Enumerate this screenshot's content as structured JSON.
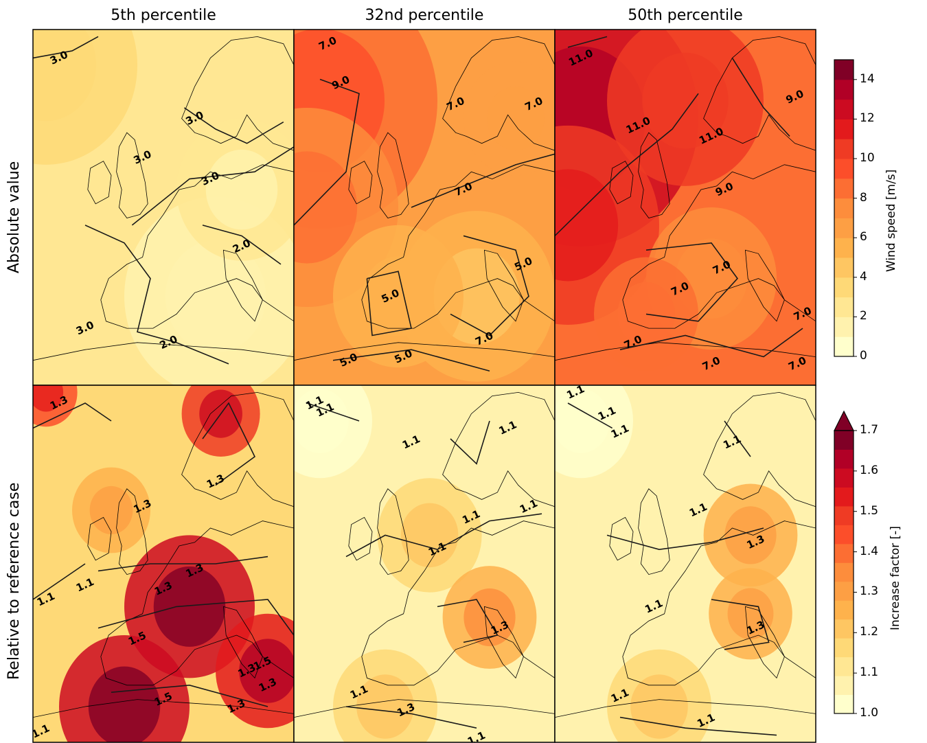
{
  "columns": [
    "5th percentile",
    "32nd percentile",
    "50th percentile"
  ],
  "rows": [
    "Absolute value",
    "Relative to reference case"
  ],
  "chart_data": [
    {
      "type": "heatmap",
      "row": "Absolute value",
      "colorbar": {
        "label": "Wind speed [m/s]",
        "range": [
          0,
          15
        ],
        "ticks": [
          "0",
          "2",
          "4",
          "6",
          "8",
          "10",
          "12",
          "14"
        ],
        "levels": 15,
        "cmap": [
          "#ffffcc",
          "#fff2ae",
          "#ffe793",
          "#fed977",
          "#fec662",
          "#feb24c",
          "#fd9f44",
          "#fd8d3c",
          "#fc6e33",
          "#fc4e2a",
          "#ef3b24",
          "#e31a1c",
          "#cc0b21",
          "#b10026",
          "#800026"
        ]
      },
      "panels": [
        {
          "column": "5th percentile",
          "base_value": 2.8,
          "contour_labels": [
            "3.0",
            "3.0",
            "3.0",
            "3.0",
            "2.0",
            "3.0",
            "2.0"
          ]
        },
        {
          "column": "32nd percentile",
          "base_value": 6.2,
          "contour_labels": [
            "7.0",
            "9.0",
            "7.0",
            "7.0",
            "7.0",
            "5.0",
            "5.0",
            "7.0",
            "5.0",
            "5.0"
          ]
        },
        {
          "column": "50th percentile",
          "base_value": 8.7,
          "contour_labels": [
            "11.0",
            "11.0",
            "11.0",
            "9.0",
            "9.0",
            "7.0",
            "7.0",
            "7.0",
            "7.0",
            "7.0",
            "7.0"
          ]
        }
      ]
    },
    {
      "type": "heatmap",
      "row": "Relative to reference case",
      "colorbar": {
        "label": "Increase factor [-]",
        "range": [
          1.0,
          1.7
        ],
        "ticks": [
          "1.0",
          "1.1",
          "1.2",
          "1.3",
          "1.4",
          "1.5",
          "1.6",
          "1.7"
        ],
        "extend": "max",
        "cmap": [
          "#ffffcc",
          "#fff2ae",
          "#ffe793",
          "#fed977",
          "#fec662",
          "#feb24c",
          "#fd9f44",
          "#fd8d3c",
          "#fc6e33",
          "#fc4e2a",
          "#ef3b24",
          "#e31a1c",
          "#cc0b21",
          "#b10026",
          "#800026"
        ]
      },
      "panels": [
        {
          "column": "5th percentile",
          "base_value": 1.18,
          "contour_labels": [
            "1.3",
            "1.3",
            "1.3",
            "1.3",
            "1.1",
            "1.1",
            "1.3",
            "1.5",
            "1.5",
            "1.3",
            "1.5",
            "1.3",
            "1.3",
            "1.1"
          ]
        },
        {
          "column": "32nd percentile",
          "base_value": 1.06,
          "contour_labels": [
            "1.1",
            "1.1",
            "1.1",
            "1.1",
            "1.1",
            "1.1",
            "1.1",
            "1.3",
            "1.1",
            "1.3",
            "1.1"
          ]
        },
        {
          "column": "50th percentile",
          "base_value": 1.06,
          "contour_labels": [
            "1.1",
            "1.1",
            "1.1",
            "1.1",
            "1.3",
            "1.1",
            "1.1",
            "1.3",
            "1.1",
            "1.1"
          ]
        }
      ]
    }
  ]
}
